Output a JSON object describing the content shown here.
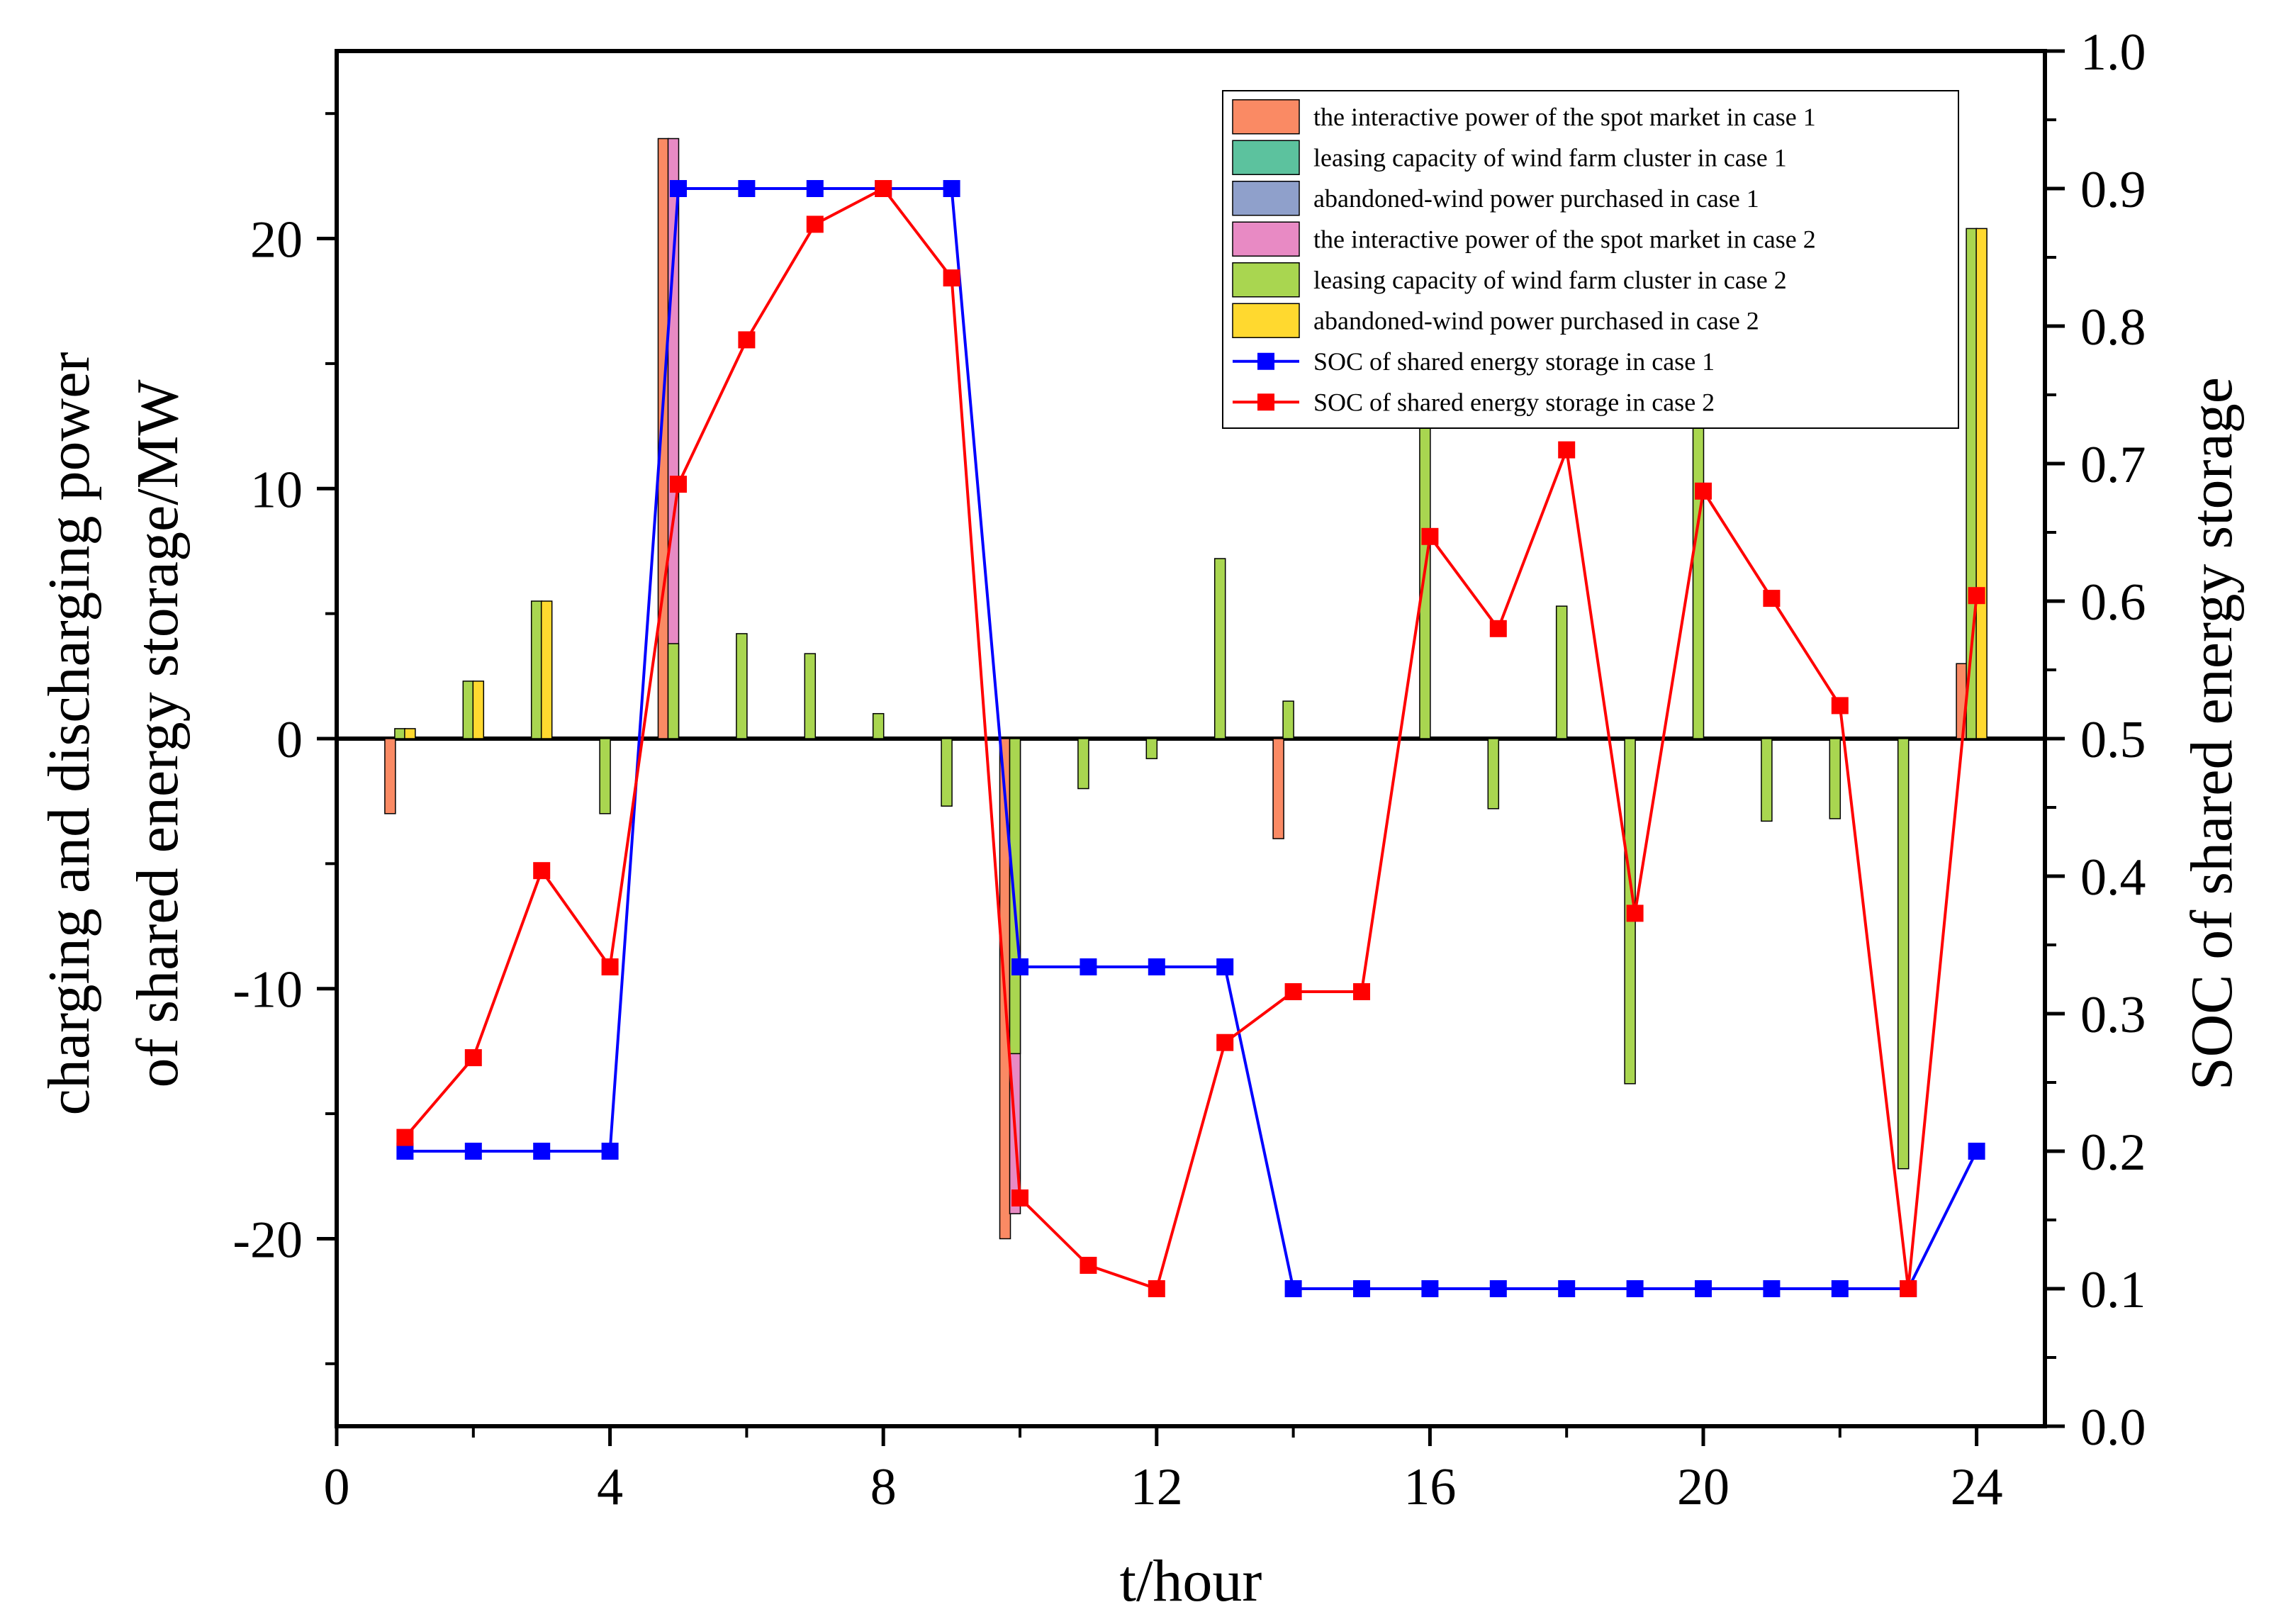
{
  "chart_data": {
    "type": "bar+line",
    "xlabel": "t/hour",
    "ylabel_left_line1": "charging and discharging power",
    "ylabel_left_line2": "of shared energy storage/MW",
    "ylabel_right": "SOC of shared energy storage",
    "xlim": [
      0,
      25
    ],
    "ylim_left": [
      -27.5,
      27.5
    ],
    "ylim_right": [
      0.0,
      1.0
    ],
    "x_ticks": [
      0,
      4,
      8,
      12,
      16,
      20,
      24
    ],
    "x_tick_labels": [
      "0",
      "4",
      "8",
      "12",
      "16",
      "20",
      "24"
    ],
    "left_ticks": [
      -20,
      -10,
      0,
      10,
      20
    ],
    "left_tick_labels": [
      "-20",
      "-10",
      "0",
      "10",
      "20"
    ],
    "right_ticks": [
      0.0,
      0.1,
      0.2,
      0.3,
      0.4,
      0.5,
      0.6,
      0.7,
      0.8,
      0.9,
      1.0
    ],
    "right_tick_labels": [
      "0.0",
      "0.1",
      "0.2",
      "0.3",
      "0.4",
      "0.5",
      "0.6",
      "0.7",
      "0.8",
      "0.9",
      "1.0"
    ],
    "hours": [
      1,
      2,
      3,
      4,
      5,
      6,
      7,
      8,
      9,
      10,
      11,
      12,
      13,
      14,
      15,
      16,
      17,
      18,
      19,
      20,
      21,
      22,
      23,
      24
    ],
    "legend_position": "top-right",
    "bar_series": [
      {
        "name": "the interactive power of the spot market in case 1",
        "color": "#FA8A64",
        "values": [
          -3,
          0,
          0,
          0,
          24,
          0,
          0,
          0,
          0,
          -20,
          0,
          0,
          0,
          -4,
          0,
          0,
          0,
          0,
          0,
          0,
          0,
          0,
          0,
          3
        ]
      },
      {
        "name": "leasing capacity of wind farm cluster in case 1",
        "color": "#5CC29E",
        "values": [
          0,
          0,
          0,
          0,
          0,
          0,
          0,
          0,
          0,
          0,
          0,
          0,
          0,
          0,
          0,
          0,
          0,
          0,
          0,
          0,
          0,
          0,
          0,
          0
        ]
      },
      {
        "name": "abandoned-wind power purchased in case 1",
        "color": "#8FA0CB",
        "values": [
          0,
          0,
          0,
          0,
          0,
          0,
          0,
          0,
          0,
          0,
          0,
          0,
          0,
          0,
          0,
          0,
          0,
          0,
          0,
          0,
          0,
          0,
          0,
          0
        ]
      },
      {
        "name": "the interactive power of the spot market in case 2",
        "color": "#E88AC4",
        "values": [
          0,
          0,
          0,
          0,
          24,
          0,
          0,
          0,
          0,
          -19,
          0,
          0,
          0,
          0,
          0,
          0,
          0,
          0,
          0,
          0,
          0,
          0,
          0,
          0
        ]
      },
      {
        "name": "leasing capacity of wind farm cluster in case 2",
        "color": "#A9D650",
        "values": [
          0.4,
          2.3,
          5.5,
          -3,
          3.8,
          4.2,
          3.4,
          1,
          -2.7,
          -12.6,
          -2,
          -0.8,
          7.2,
          1.5,
          0,
          13,
          -2.8,
          5.3,
          -13.8,
          12.5,
          -3.3,
          -3.2,
          -17.2,
          20.4
        ]
      },
      {
        "name": "abandoned-wind power purchased in case 2",
        "color": "#FFD92F",
        "values": [
          0.4,
          2.3,
          5.5,
          0,
          0,
          0,
          0,
          0,
          0,
          0,
          0,
          0,
          0,
          0,
          0,
          0,
          0,
          0,
          0,
          0,
          0,
          0,
          0,
          20.4
        ]
      }
    ],
    "line_series": [
      {
        "name": "SOC of shared energy storage in case 1",
        "color": "#0000FF",
        "values": [
          0.2,
          0.2,
          0.2,
          0.2,
          0.9,
          0.9,
          0.9,
          0.9,
          0.9,
          0.334,
          0.334,
          0.334,
          0.334,
          0.1,
          0.1,
          0.1,
          0.1,
          0.1,
          0.1,
          0.1,
          0.1,
          0.1,
          0.1,
          0.2
        ]
      },
      {
        "name": "SOC of shared energy storage in case 2",
        "color": "#FF0000",
        "values": [
          0.21,
          0.268,
          0.404,
          0.334,
          0.685,
          0.79,
          0.874,
          0.9,
          0.835,
          0.166,
          0.117,
          0.1,
          0.279,
          0.316,
          0.316,
          0.647,
          0.58,
          0.71,
          0.373,
          0.68,
          0.602,
          0.524,
          0.1,
          0.604
        ]
      }
    ]
  }
}
